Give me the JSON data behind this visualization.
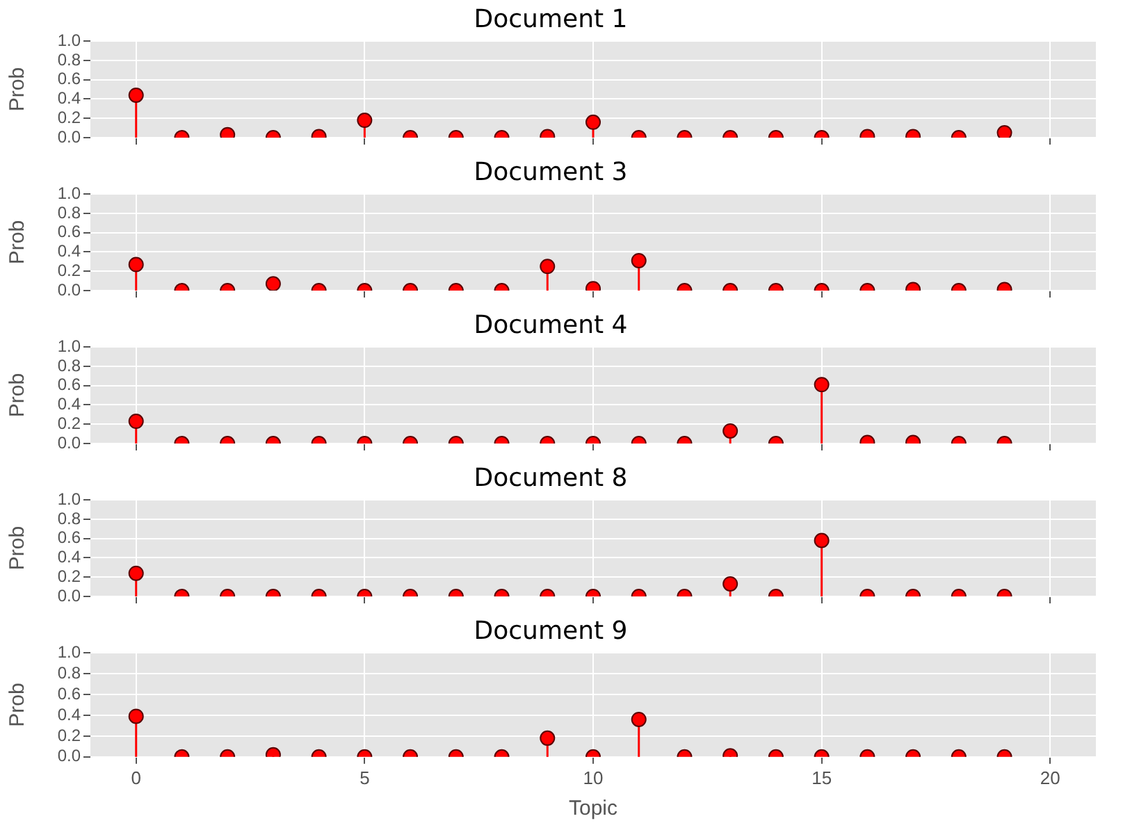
{
  "chart_data": [
    {
      "type": "lollipop",
      "title": "Document 1",
      "ylabel": "Prob",
      "x": [
        0,
        1,
        2,
        3,
        4,
        5,
        6,
        7,
        8,
        9,
        10,
        11,
        12,
        13,
        14,
        15,
        16,
        17,
        18,
        19
      ],
      "series": [
        {
          "color": "#ff0000",
          "values": [
            0.44,
            0,
            0.03,
            0,
            0.01,
            0.18,
            0,
            0,
            0,
            0.01,
            0.16,
            0,
            0,
            0,
            0,
            0,
            0.01,
            0.01,
            0,
            0.05
          ]
        }
      ],
      "xlim": [
        -1,
        21
      ],
      "xticks": [
        0,
        5,
        10,
        15,
        20
      ],
      "ylim": [
        0,
        1
      ],
      "yticks": [
        {
          "value": 0,
          "label": "0.0"
        },
        {
          "value": 0.2,
          "label": "0.2"
        },
        {
          "value": 0.4,
          "label": "0.4"
        },
        {
          "value": 0.6,
          "label": "0.6"
        },
        {
          "value": 0.8,
          "label": "0.8"
        },
        {
          "value": 1,
          "label": "1.0"
        }
      ],
      "grid": true,
      "marker": "circle",
      "tick_labels": "y"
    },
    {
      "type": "lollipop",
      "title": "Document 3",
      "ylabel": "Prob",
      "x": [
        0,
        1,
        2,
        3,
        4,
        5,
        6,
        7,
        8,
        9,
        10,
        11,
        12,
        13,
        14,
        15,
        16,
        17,
        18,
        19
      ],
      "series": [
        {
          "color": "#ff0000",
          "values": [
            0.27,
            0,
            0,
            0.07,
            0,
            0,
            0,
            0,
            0,
            0.25,
            0.02,
            0.31,
            0,
            0,
            0,
            0,
            0,
            0.01,
            0,
            0.01
          ]
        }
      ],
      "xlim": [
        -1,
        21
      ],
      "xticks": [
        0,
        5,
        10,
        15,
        20
      ],
      "ylim": [
        0,
        1
      ],
      "yticks": [
        {
          "value": 0,
          "label": "0.0"
        },
        {
          "value": 0.2,
          "label": "0.2"
        },
        {
          "value": 0.4,
          "label": "0.4"
        },
        {
          "value": 0.6,
          "label": "0.6"
        },
        {
          "value": 0.8,
          "label": "0.8"
        },
        {
          "value": 1,
          "label": "1.0"
        }
      ],
      "grid": true,
      "marker": "circle",
      "tick_labels": "y"
    },
    {
      "type": "lollipop",
      "title": "Document 4",
      "ylabel": "Prob",
      "x": [
        0,
        1,
        2,
        3,
        4,
        5,
        6,
        7,
        8,
        9,
        10,
        11,
        12,
        13,
        14,
        15,
        16,
        17,
        18,
        19
      ],
      "series": [
        {
          "color": "#ff0000",
          "values": [
            0.23,
            0,
            0,
            0,
            0,
            0,
            0,
            0,
            0,
            0,
            0,
            0,
            0,
            0.13,
            0,
            0.61,
            0.01,
            0.01,
            0,
            0
          ]
        }
      ],
      "xlim": [
        -1,
        21
      ],
      "xticks": [
        0,
        5,
        10,
        15,
        20
      ],
      "ylim": [
        0,
        1
      ],
      "yticks": [
        {
          "value": 0,
          "label": "0.0"
        },
        {
          "value": 0.2,
          "label": "0.2"
        },
        {
          "value": 0.4,
          "label": "0.4"
        },
        {
          "value": 0.6,
          "label": "0.6"
        },
        {
          "value": 0.8,
          "label": "0.8"
        },
        {
          "value": 1,
          "label": "1.0"
        }
      ],
      "grid": true,
      "marker": "circle",
      "tick_labels": "y"
    },
    {
      "type": "lollipop",
      "title": "Document 8",
      "ylabel": "Prob",
      "x": [
        0,
        1,
        2,
        3,
        4,
        5,
        6,
        7,
        8,
        9,
        10,
        11,
        12,
        13,
        14,
        15,
        16,
        17,
        18,
        19
      ],
      "series": [
        {
          "color": "#ff0000",
          "values": [
            0.24,
            0,
            0,
            0,
            0,
            0,
            0,
            0,
            0,
            0,
            0,
            0,
            0,
            0.13,
            0,
            0.58,
            0,
            0,
            0,
            0
          ]
        }
      ],
      "xlim": [
        -1,
        21
      ],
      "xticks": [
        0,
        5,
        10,
        15,
        20
      ],
      "ylim": [
        0,
        1
      ],
      "yticks": [
        {
          "value": 0,
          "label": "0.0"
        },
        {
          "value": 0.2,
          "label": "0.2"
        },
        {
          "value": 0.4,
          "label": "0.4"
        },
        {
          "value": 0.6,
          "label": "0.6"
        },
        {
          "value": 0.8,
          "label": "0.8"
        },
        {
          "value": 1,
          "label": "1.0"
        }
      ],
      "grid": true,
      "marker": "circle",
      "tick_labels": "y"
    },
    {
      "type": "lollipop",
      "title": "Document 9",
      "xlabel": "Topic",
      "ylabel": "Prob",
      "x": [
        0,
        1,
        2,
        3,
        4,
        5,
        6,
        7,
        8,
        9,
        10,
        11,
        12,
        13,
        14,
        15,
        16,
        17,
        18,
        19
      ],
      "series": [
        {
          "color": "#ff0000",
          "values": [
            0.39,
            0,
            0,
            0.02,
            0,
            0,
            0,
            0,
            0,
            0.18,
            0,
            0.36,
            0,
            0.01,
            0,
            0,
            0,
            0,
            0,
            0
          ]
        }
      ],
      "xlim": [
        -1,
        21
      ],
      "xticks": [
        0,
        5,
        10,
        15,
        20
      ],
      "ylim": [
        0,
        1
      ],
      "yticks": [
        {
          "value": 0,
          "label": "0.0"
        },
        {
          "value": 0.2,
          "label": "0.2"
        },
        {
          "value": 0.4,
          "label": "0.4"
        },
        {
          "value": 0.6,
          "label": "0.6"
        },
        {
          "value": 0.8,
          "label": "0.8"
        },
        {
          "value": 1,
          "label": "1.0"
        }
      ],
      "grid": true,
      "marker": "circle"
    }
  ]
}
